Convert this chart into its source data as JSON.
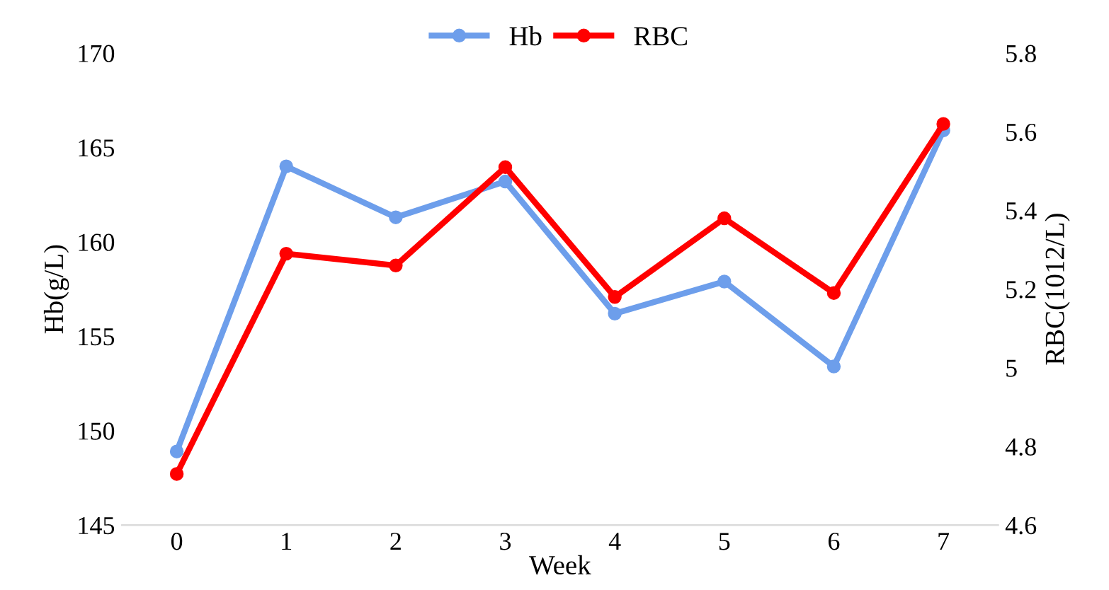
{
  "chart_data": {
    "type": "line",
    "categories": [
      "0",
      "1",
      "2",
      "3",
      "4",
      "5",
      "6",
      "7"
    ],
    "xlabel": "Week",
    "ylabel": "Hb(g/L)",
    "y2label": "RBC(1012/L)",
    "ylim": [
      145,
      170
    ],
    "yticks": [
      145,
      150,
      155,
      160,
      165,
      170
    ],
    "y2lim": [
      4.6,
      5.8
    ],
    "y2ticks": [
      4.6,
      {
        "value": 4.8,
        "label": "4.8"
      },
      5,
      {
        "value": 5.2,
        "label": "5.2"
      },
      {
        "value": 5.4,
        "label": "5.4"
      },
      {
        "value": 5.6,
        "label": "5.6"
      },
      {
        "value": 5.8,
        "label": "5.8"
      }
    ],
    "series": [
      {
        "name": "Hb",
        "color": "#6d9eeb",
        "values": [
          148.9,
          164.0,
          161.3,
          163.2,
          156.2,
          157.9,
          153.4,
          165.9
        ]
      },
      {
        "name": "RBC",
        "color": "#ff0000",
        "axis": "y2",
        "values": [
          4.73,
          5.29,
          5.26,
          5.51,
          5.18,
          5.38,
          5.19,
          5.62
        ]
      }
    ],
    "marker": "circle",
    "line_style": "solid",
    "grid": false,
    "legend": "top"
  }
}
